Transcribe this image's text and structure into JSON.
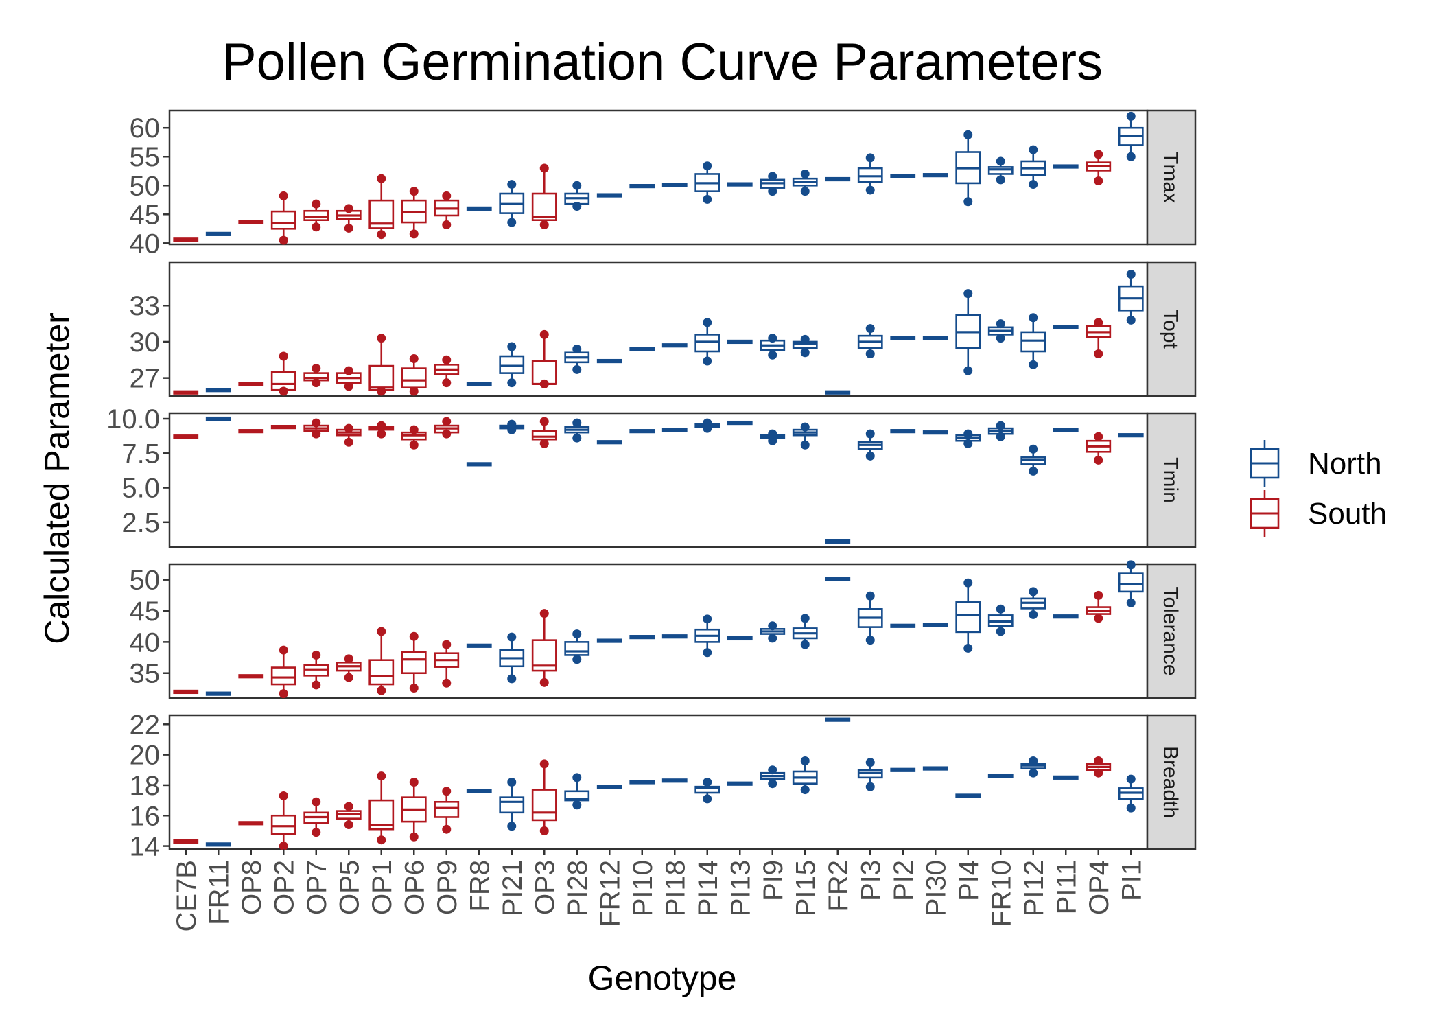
{
  "chart_data": {
    "type": "box",
    "title": "Pollen Germination Curve Parameters",
    "xlabel": "Genotype",
    "ylabel": "Calculated Parameter",
    "facet_layout": "rows, free y scales",
    "grid": false,
    "legend_position": "right",
    "colors": {
      "North": "#154c8c",
      "South": "#b2181f"
    },
    "legend": [
      {
        "label": "North",
        "key": "North"
      },
      {
        "label": "South",
        "key": "South"
      }
    ],
    "categories": [
      "CE7B",
      "FR11",
      "OP8",
      "OP2",
      "OP7",
      "OP5",
      "OP1",
      "OP6",
      "OP9",
      "FR8",
      "PI21",
      "OP3",
      "PI28",
      "FR12",
      "PI10",
      "PI18",
      "PI14",
      "PI13",
      "PI9",
      "PI15",
      "FR2",
      "PI3",
      "PI2",
      "PI30",
      "PI4",
      "FR10",
      "PI12",
      "PI11",
      "OP4",
      "PI1"
    ],
    "groups": [
      "South",
      "North",
      "South",
      "South",
      "South",
      "South",
      "South",
      "South",
      "South",
      "North",
      "North",
      "South",
      "North",
      "North",
      "North",
      "North",
      "North",
      "North",
      "North",
      "North",
      "North",
      "North",
      "North",
      "North",
      "North",
      "North",
      "North",
      "North",
      "South",
      "North"
    ],
    "facets": [
      {
        "label": "Tmax",
        "ylim": [
          39.8,
          63
        ],
        "yticks": [
          40,
          45,
          50,
          55,
          60
        ],
        "tick_labels": [
          "40",
          "45",
          "50",
          "55",
          "60"
        ],
        "boxes": [
          [
            40.6,
            40.6,
            40.6,
            40.6,
            40.6
          ],
          [
            41.6,
            41.6,
            41.6,
            41.6,
            41.6
          ],
          [
            43.7,
            43.7,
            43.7,
            43.7,
            43.7
          ],
          [
            40.5,
            42.5,
            43.5,
            45.5,
            48.2
          ],
          [
            42.8,
            44,
            44.6,
            45.6,
            46.8
          ],
          [
            42.6,
            44.2,
            44.8,
            45.6,
            46
          ],
          [
            41.5,
            42.6,
            43.4,
            47.4,
            51.2
          ],
          [
            41.6,
            43.6,
            45.4,
            47.4,
            49
          ],
          [
            43.2,
            44.8,
            46,
            47.4,
            48.2
          ],
          [
            46,
            46,
            46,
            46,
            46
          ],
          [
            43.6,
            45.2,
            46.8,
            48.6,
            50.2
          ],
          [
            43.2,
            44,
            44.6,
            48.6,
            53
          ],
          [
            46.4,
            46.8,
            47.8,
            48.6,
            50
          ],
          [
            48.3,
            48.3,
            48.3,
            48.3,
            48.3
          ],
          [
            49.9,
            49.9,
            49.9,
            49.9,
            49.9
          ],
          [
            50.1,
            50.1,
            50.1,
            50.1,
            50.1
          ],
          [
            47.6,
            49,
            50.4,
            52,
            53.4
          ],
          [
            50.2,
            50.2,
            50.2,
            50.2,
            50.2
          ],
          [
            49,
            49.6,
            50.4,
            51,
            51.6
          ],
          [
            49,
            50,
            50.6,
            51.2,
            52
          ],
          [
            51.1,
            51.1,
            51.1,
            51.1,
            51.1
          ],
          [
            49.2,
            50.6,
            51.6,
            53,
            54.8
          ],
          [
            51.6,
            51.6,
            51.6,
            51.6,
            51.6
          ],
          [
            51.8,
            51.8,
            51.8,
            51.8,
            51.8
          ],
          [
            47.2,
            50.4,
            53,
            55.8,
            58.8
          ],
          [
            51,
            52,
            52.8,
            53.2,
            54.2
          ],
          [
            50.2,
            51.8,
            53,
            54.2,
            56.2
          ],
          [
            53.3,
            53.3,
            53.3,
            53.3,
            53.3
          ],
          [
            50.8,
            52.6,
            53.4,
            54,
            55.4
          ],
          [
            55,
            57,
            58.6,
            60,
            62
          ]
        ]
      },
      {
        "label": "Topt",
        "ylim": [
          25.5,
          36.6
        ],
        "yticks": [
          27,
          30,
          33
        ],
        "tick_labels": [
          "27",
          "30",
          "33"
        ],
        "boxes": [
          [
            25.8,
            25.8,
            25.8,
            25.8,
            25.8
          ],
          [
            26,
            26,
            26,
            26,
            26
          ],
          [
            26.5,
            26.5,
            26.5,
            26.5,
            26.5
          ],
          [
            25.9,
            26,
            26.5,
            27.5,
            28.8
          ],
          [
            26.6,
            26.8,
            27,
            27.4,
            27.8
          ],
          [
            26.3,
            26.6,
            27,
            27.4,
            27.6
          ],
          [
            25.9,
            26,
            26.2,
            28,
            30.3
          ],
          [
            25.9,
            26.2,
            26.8,
            27.8,
            28.6
          ],
          [
            26.6,
            27.3,
            27.7,
            28.1,
            28.5
          ],
          [
            26.5,
            26.5,
            26.5,
            26.5,
            26.5
          ],
          [
            26.6,
            27.4,
            28,
            28.8,
            29.6
          ],
          [
            26.5,
            26.5,
            26.5,
            28.4,
            30.6
          ],
          [
            27.7,
            28.3,
            28.7,
            29.1,
            29.4
          ],
          [
            28.4,
            28.4,
            28.4,
            28.4,
            28.4
          ],
          [
            29.4,
            29.4,
            29.4,
            29.4,
            29.4
          ],
          [
            29.7,
            29.7,
            29.7,
            29.7,
            29.7
          ],
          [
            28.4,
            29.2,
            30,
            30.6,
            31.6
          ],
          [
            30,
            30,
            30,
            30,
            30
          ],
          [
            28.9,
            29.3,
            29.7,
            30.1,
            30.3
          ],
          [
            29.1,
            29.5,
            29.8,
            30.0,
            30.2
          ],
          [
            25.8,
            25.8,
            25.8,
            25.8,
            25.8
          ],
          [
            29,
            29.5,
            30,
            30.5,
            31.1
          ],
          [
            30.3,
            30.3,
            30.3,
            30.3,
            30.3
          ],
          [
            30.3,
            30.3,
            30.3,
            30.3,
            30.3
          ],
          [
            27.6,
            29.5,
            30.8,
            32.2,
            34.0
          ],
          [
            30.3,
            30.6,
            30.9,
            31.2,
            31.5
          ],
          [
            28.1,
            29.2,
            30.1,
            30.8,
            32.0
          ],
          [
            31.2,
            31.2,
            31.2,
            31.2,
            31.2
          ],
          [
            29.0,
            30.4,
            30.8,
            31.3,
            31.6
          ],
          [
            31.8,
            32.6,
            33.6,
            34.6,
            35.6
          ]
        ]
      },
      {
        "label": "Tmin",
        "ylim": [
          0.7,
          10.4
        ],
        "yticks": [
          2.5,
          5.0,
          7.5,
          10.0
        ],
        "tick_labels": [
          "2.5",
          "5.0",
          "7.5",
          "10.0"
        ],
        "boxes": [
          [
            8.7,
            8.7,
            8.7,
            8.7,
            8.7
          ],
          [
            10,
            10,
            10,
            10,
            10
          ],
          [
            9.1,
            9.1,
            9.1,
            9.1,
            9.1
          ],
          [
            9.4,
            9.4,
            9.4,
            9.4,
            9.4
          ],
          [
            8.9,
            9.1,
            9.3,
            9.5,
            9.7
          ],
          [
            8.3,
            8.8,
            9.0,
            9.2,
            9.3
          ],
          [
            8.9,
            9.2,
            9.3,
            9.4,
            9.5
          ],
          [
            8.1,
            8.5,
            8.8,
            9.0,
            9.2
          ],
          [
            8.9,
            9.0,
            9.3,
            9.5,
            9.8
          ],
          [
            6.7,
            6.7,
            6.7,
            6.7,
            6.7
          ],
          [
            9.2,
            9.3,
            9.4,
            9.5,
            9.6
          ],
          [
            8.2,
            8.5,
            8.7,
            9.1,
            9.8
          ],
          [
            8.6,
            9.0,
            9.2,
            9.4,
            9.7
          ],
          [
            8.3,
            8.3,
            8.3,
            8.3,
            8.3
          ],
          [
            9.1,
            9.1,
            9.1,
            9.1,
            9.1
          ],
          [
            9.2,
            9.2,
            9.2,
            9.2,
            9.2
          ],
          [
            9.3,
            9.4,
            9.5,
            9.6,
            9.7
          ],
          [
            9.7,
            9.7,
            9.7,
            9.7,
            9.7
          ],
          [
            8.4,
            8.6,
            8.7,
            8.8,
            8.9
          ],
          [
            8.1,
            8.8,
            9.0,
            9.2,
            9.4
          ],
          [
            1.1,
            1.1,
            1.1,
            1.1,
            1.1
          ],
          [
            7.3,
            7.8,
            8.1,
            8.3,
            8.9
          ],
          [
            9.1,
            9.1,
            9.1,
            9.1,
            9.1
          ],
          [
            9.0,
            9.0,
            9.0,
            9.0,
            9.0
          ],
          [
            8.2,
            8.4,
            8.6,
            8.8,
            8.9
          ],
          [
            8.7,
            8.9,
            9.1,
            9.3,
            9.5
          ],
          [
            6.2,
            6.7,
            7.0,
            7.2,
            7.8
          ],
          [
            9.2,
            9.2,
            9.2,
            9.2,
            9.2
          ],
          [
            7.0,
            7.6,
            8.0,
            8.4,
            8.7
          ],
          [
            8.8,
            8.8,
            8.8,
            8.8,
            8.8
          ]
        ]
      },
      {
        "label": "Tolerance",
        "ylim": [
          31,
          52.5
        ],
        "yticks": [
          35,
          40,
          45,
          50
        ],
        "tick_labels": [
          "35",
          "40",
          "45",
          "50"
        ],
        "boxes": [
          [
            32,
            32,
            32,
            32,
            32
          ],
          [
            31.7,
            31.7,
            31.7,
            31.7,
            31.7
          ],
          [
            34.5,
            34.5,
            34.5,
            34.5,
            34.5
          ],
          [
            31.7,
            33.2,
            34.3,
            35.9,
            38.7
          ],
          [
            33.1,
            34.6,
            35.6,
            36.3,
            37.9
          ],
          [
            34.3,
            35.4,
            36.1,
            36.7,
            37.3
          ],
          [
            32.2,
            33.2,
            34.5,
            37.1,
            41.7
          ],
          [
            32.6,
            35.0,
            37.2,
            38.4,
            40.9
          ],
          [
            33.4,
            36.0,
            37.1,
            38.2,
            39.6
          ],
          [
            39.4,
            39.4,
            39.4,
            39.4,
            39.4
          ],
          [
            34.1,
            36.1,
            37.4,
            38.7,
            40.8
          ],
          [
            33.5,
            35.4,
            36.2,
            40.3,
            44.6
          ],
          [
            37.2,
            37.9,
            38.5,
            40,
            41.3
          ],
          [
            40.2,
            40.2,
            40.2,
            40.2,
            40.2
          ],
          [
            40.8,
            40.8,
            40.8,
            40.8,
            40.8
          ],
          [
            40.9,
            40.9,
            40.9,
            40.9,
            40.9
          ],
          [
            38.3,
            40,
            41,
            42,
            43.7
          ],
          [
            40.6,
            40.6,
            40.6,
            40.6,
            40.6
          ],
          [
            40.6,
            41.3,
            41.7,
            42.1,
            42.6
          ],
          [
            39.6,
            40.6,
            41.4,
            42.2,
            43.8
          ],
          [
            50.1,
            50.1,
            50.1,
            50.1,
            50.1
          ],
          [
            40.3,
            42.4,
            43.9,
            45.3,
            47.4
          ],
          [
            42.6,
            42.6,
            42.6,
            42.6,
            42.6
          ],
          [
            42.7,
            42.7,
            42.7,
            42.7,
            42.7
          ],
          [
            39,
            41.6,
            44.3,
            46.4,
            49.5
          ],
          [
            41.7,
            42.6,
            43.3,
            44.3,
            45.3
          ],
          [
            44.4,
            45.4,
            46.3,
            47,
            48.1
          ],
          [
            44.1,
            44.1,
            44.1,
            44.1,
            44.1
          ],
          [
            43.8,
            44.5,
            45,
            45.6,
            47.5
          ],
          [
            46.3,
            48.1,
            49.3,
            51.0,
            52.4
          ]
        ]
      },
      {
        "label": "Breadth",
        "ylim": [
          13.8,
          22.6
        ],
        "yticks": [
          14,
          16,
          18,
          20,
          22
        ],
        "tick_labels": [
          "14",
          "16",
          "18",
          "20",
          "22"
        ],
        "boxes": [
          [
            14.3,
            14.3,
            14.3,
            14.3,
            14.3
          ],
          [
            14.1,
            14.1,
            14.1,
            14.1,
            14.1
          ],
          [
            15.5,
            15.5,
            15.5,
            15.5,
            15.5
          ],
          [
            14.0,
            14.8,
            15.3,
            16.0,
            17.3
          ],
          [
            14.9,
            15.5,
            15.9,
            16.2,
            16.9
          ],
          [
            15.4,
            15.8,
            16.1,
            16.3,
            16.6
          ],
          [
            14.4,
            15.1,
            15.4,
            17.0,
            18.6
          ],
          [
            14.6,
            15.6,
            16.4,
            17.2,
            18.2
          ],
          [
            15.1,
            15.9,
            16.5,
            16.9,
            17.6
          ],
          [
            17.6,
            17.6,
            17.6,
            17.6,
            17.6
          ],
          [
            15.3,
            16.2,
            16.9,
            17.2,
            18.2
          ],
          [
            15.0,
            15.7,
            16.2,
            17.7,
            19.4
          ],
          [
            16.7,
            17,
            17.1,
            17.6,
            18.5
          ],
          [
            17.9,
            17.9,
            17.9,
            17.9,
            17.9
          ],
          [
            18.2,
            18.2,
            18.2,
            18.2,
            18.2
          ],
          [
            18.3,
            18.3,
            18.3,
            18.3,
            18.3
          ],
          [
            17.1,
            17.5,
            17.8,
            17.9,
            18.2
          ],
          [
            18.1,
            18.1,
            18.1,
            18.1,
            18.1
          ],
          [
            18.1,
            18.4,
            18.6,
            18.8,
            19.0
          ],
          [
            17.7,
            18.1,
            18.5,
            18.9,
            19.6
          ],
          [
            22.3,
            22.3,
            22.3,
            22.3,
            22.3
          ],
          [
            17.9,
            18.5,
            18.8,
            19.0,
            19.5
          ],
          [
            19.0,
            19.0,
            19.0,
            19.0,
            19.0
          ],
          [
            19.1,
            19.1,
            19.1,
            19.1,
            19.1
          ],
          [
            17.3,
            17.3,
            17.3,
            17.3,
            17.3
          ],
          [
            18.6,
            18.6,
            18.6,
            18.6,
            18.6
          ],
          [
            18.8,
            19.1,
            19.3,
            19.4,
            19.6
          ],
          [
            18.5,
            18.5,
            18.5,
            18.5,
            18.5
          ],
          [
            18.8,
            19.0,
            19.2,
            19.4,
            19.6
          ],
          [
            16.5,
            17.1,
            17.5,
            17.8,
            18.4
          ]
        ]
      }
    ]
  }
}
